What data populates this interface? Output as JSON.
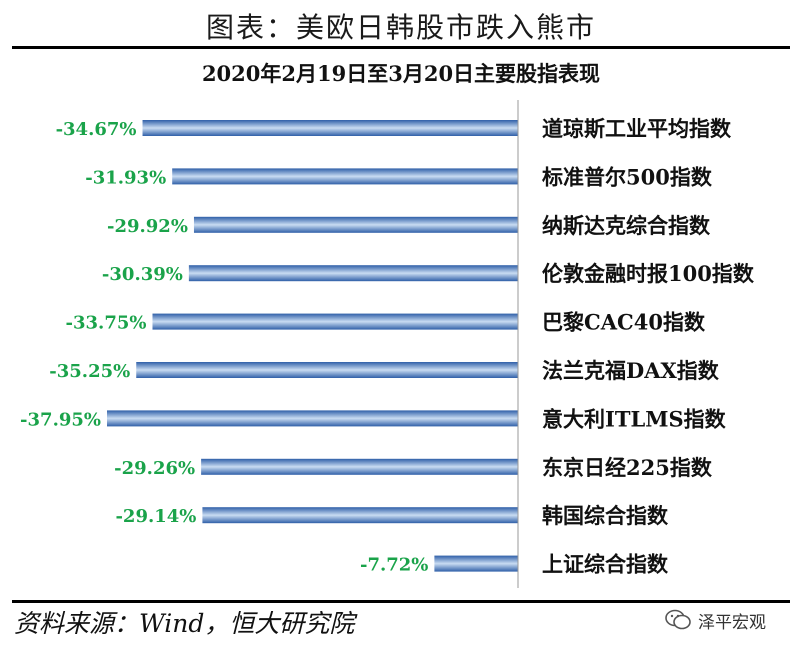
{
  "header": {
    "title": "图表：美欧日韩股市跌入熊市"
  },
  "source": {
    "text": "资料来源：Wind，恒大研究院"
  },
  "watermark": {
    "text": "泽平宏观",
    "icon": "wechat-icon"
  },
  "colors": {
    "bar_dark": "#2f5fa8",
    "bar_light": "#c9dcf2",
    "label_green": "#1aa34a",
    "axis": "#999999"
  },
  "chart_data": {
    "type": "bar",
    "orientation": "horizontal",
    "title": "2020年2月19日至3月20日主要股指表现",
    "categories": [
      "道琼斯工业平均指数",
      "标准普尔500指数",
      "纳斯达克综合指数",
      "伦敦金融时报100指数",
      "巴黎CAC40指数",
      "法兰克福DAX指数",
      "意大利ITLMS指数",
      "东京日经225指数",
      "韩国综合指数",
      "上证综合指数"
    ],
    "values": [
      -34.67,
      -31.93,
      -29.92,
      -30.39,
      -33.75,
      -35.25,
      -37.95,
      -29.26,
      -29.14,
      -7.72
    ],
    "value_labels": [
      "-34.67%",
      "-31.93%",
      "-29.92%",
      "-30.39%",
      "-33.75%",
      "-35.25%",
      "-37.95%",
      "-29.26%",
      "-29.14%",
      "-7.72%"
    ],
    "xlim": [
      -40,
      0
    ],
    "grid": false,
    "legend": "none"
  }
}
